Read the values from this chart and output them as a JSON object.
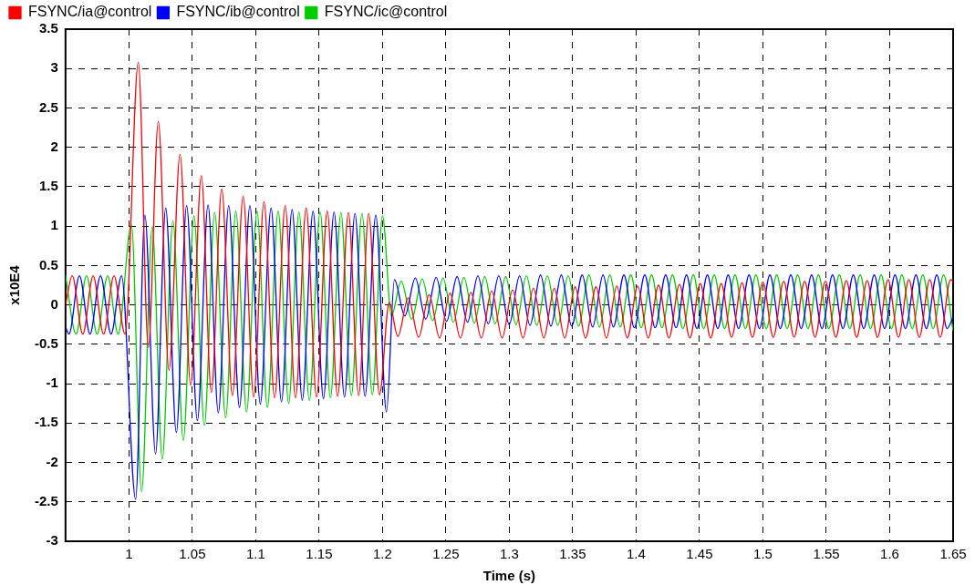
{
  "chart_data": {
    "type": "line",
    "xlabel": "Time (s)",
    "ylabel": "x10E4",
    "xlim": [
      0.95,
      1.65
    ],
    "xticks": [
      1,
      1.05,
      1.1,
      1.15,
      1.2,
      1.25,
      1.3,
      1.35,
      1.4,
      1.45,
      1.5,
      1.55,
      1.6,
      1.65
    ],
    "ylim": [
      -3,
      3.5
    ],
    "yticks": [
      -3,
      -2.5,
      -2,
      -1.5,
      -1,
      -0.5,
      0,
      0.5,
      1,
      1.5,
      2,
      2.5,
      3,
      3.5
    ],
    "grid": true,
    "legend": "top left",
    "marker": "none",
    "series": [
      {
        "name": "FSYNC/ia@control",
        "color": "#ff0000",
        "x": [
          0.95,
          0.9553,
          0.9636,
          0.9718,
          0.98,
          0.9882,
          0.997,
          1.0074,
          1.0153,
          1.0232,
          1.0316,
          1.0403,
          1.0487,
          1.0571,
          1.065,
          1.0732,
          1.0816,
          1.0901,
          1.0984,
          1.1065,
          1.1149,
          1.1232,
          1.1314,
          1.1398,
          1.148,
          1.1564,
          1.1646,
          1.1731,
          1.1812,
          1.1891,
          1.1976,
          1.2053,
          1.2121,
          1.2203,
          1.2285,
          1.2368,
          1.245,
          1.2532,
          1.2614,
          1.2697,
          1.2779,
          1.2861,
          1.2943,
          1.3026,
          1.3108,
          1.319,
          1.3272,
          1.3355,
          1.3437,
          1.3519,
          1.3601,
          1.3684,
          1.3766,
          1.3848,
          1.393,
          1.4013,
          1.4095,
          1.4177,
          1.4259,
          1.4342,
          1.4424,
          1.4506,
          1.4588,
          1.4671,
          1.4753,
          1.4835,
          1.4917,
          1.5,
          1.5082,
          1.5164,
          1.5246,
          1.5329,
          1.5411,
          1.5493,
          1.5575,
          1.5658,
          1.574,
          1.5822,
          1.5904,
          1.5987,
          1.6069,
          1.6151,
          1.6233,
          1.6316,
          1.6398,
          1.648,
          1.65
        ],
        "values": [
          0,
          0.37,
          -0.37,
          0.37,
          -0.37,
          0.37,
          -0.37,
          3.08,
          -0.54,
          2.33,
          -0.83,
          1.91,
          -1.02,
          1.64,
          -1.11,
          1.47,
          -1.15,
          1.38,
          -1.17,
          1.31,
          -1.18,
          1.26,
          -1.18,
          1.23,
          -1.17,
          1.19,
          -1.16,
          1.17,
          -1.15,
          1.16,
          -1.14,
          0.03,
          -0.4,
          0.09,
          -0.41,
          0.13,
          -0.42,
          0.15,
          -0.42,
          0.16,
          -0.42,
          0.18,
          -0.42,
          0.19,
          -0.42,
          0.21,
          -0.42,
          0.21,
          -0.42,
          0.23,
          -0.42,
          0.23,
          -0.42,
          0.24,
          -0.42,
          0.24,
          -0.42,
          0.25,
          -0.42,
          0.26,
          -0.42,
          0.27,
          -0.42,
          0.27,
          -0.41,
          0.28,
          -0.41,
          0.29,
          -0.41,
          0.3,
          -0.41,
          0.3,
          -0.41,
          0.3,
          -0.41,
          0.31,
          -0.41,
          0.31,
          -0.41,
          0.32,
          -0.41,
          0.32,
          -0.41,
          0.32,
          -0.41,
          0.32,
          0.3
        ]
      },
      {
        "name": "FSYNC/ib@control",
        "color": "#0000ff",
        "x": [
          0.95,
          0.9527,
          0.961,
          0.9693,
          0.9776,
          0.9859,
          0.9942,
          1.0053,
          1.0126,
          1.021,
          1.029,
          1.0374,
          1.0455,
          1.054,
          1.0624,
          1.0705,
          1.0787,
          1.0872,
          1.0954,
          1.1036,
          1.1121,
          1.1203,
          1.1287,
          1.1367,
          1.1452,
          1.1534,
          1.1618,
          1.17,
          1.1783,
          1.1862,
          1.1947,
          1.2031,
          1.2094,
          1.2176,
          1.2259,
          1.2341,
          1.2423,
          1.2505,
          1.2588,
          1.267,
          1.2752,
          1.2834,
          1.2917,
          1.2999,
          1.3081,
          1.3163,
          1.3246,
          1.3328,
          1.341,
          1.3492,
          1.3575,
          1.3657,
          1.3739,
          1.3821,
          1.3904,
          1.3986,
          1.4068,
          1.415,
          1.4233,
          1.4315,
          1.4397,
          1.4479,
          1.4562,
          1.4644,
          1.4726,
          1.4808,
          1.4891,
          1.4973,
          1.5055,
          1.5137,
          1.522,
          1.5302,
          1.5384,
          1.5466,
          1.5549,
          1.5631,
          1.5713,
          1.5795,
          1.5878,
          1.596,
          1.6042,
          1.6124,
          1.6207,
          1.6289,
          1.6371,
          1.6453,
          1.65
        ],
        "values": [
          -0.28,
          -0.37,
          0.37,
          -0.37,
          0.37,
          -0.37,
          0.37,
          -2.47,
          1.14,
          -1.89,
          1.23,
          -1.62,
          1.26,
          -1.47,
          1.27,
          -1.37,
          1.26,
          -1.3,
          1.26,
          -1.26,
          1.23,
          -1.23,
          1.21,
          -1.21,
          1.19,
          -1.19,
          1.18,
          -1.17,
          1.16,
          -1.16,
          1.14,
          -1.36,
          0.32,
          -0.14,
          0.34,
          -0.18,
          0.35,
          -0.21,
          0.36,
          -0.22,
          0.37,
          -0.24,
          0.37,
          -0.25,
          0.37,
          -0.26,
          0.38,
          -0.27,
          0.38,
          -0.27,
          0.38,
          -0.28,
          0.38,
          -0.28,
          0.38,
          -0.29,
          0.38,
          -0.29,
          0.38,
          -0.29,
          0.38,
          -0.3,
          0.38,
          -0.3,
          0.38,
          -0.3,
          0.38,
          -0.3,
          0.38,
          -0.3,
          0.38,
          -0.3,
          0.38,
          -0.3,
          0.38,
          -0.3,
          0.38,
          -0.3,
          0.38,
          -0.3,
          0.38,
          -0.3,
          0.38,
          -0.3,
          0.38,
          -0.3,
          -0.15
        ]
      },
      {
        "name": "FSYNC/ic@control",
        "color": "#00cc00",
        "x": [
          0.95,
          0.9583,
          0.9666,
          0.9749,
          0.9832,
          0.9915,
          1.002,
          1.01,
          1.0184,
          1.0263,
          1.0347,
          1.0429,
          1.0513,
          1.0595,
          1.0676,
          1.0763,
          1.0843,
          1.0928,
          1.101,
          1.1092,
          1.1177,
          1.126,
          1.1341,
          1.1423,
          1.1508,
          1.1589,
          1.1672,
          1.1754,
          1.1838,
          1.192,
          1.2,
          1.207,
          1.2148,
          1.223,
          1.2313,
          1.2395,
          1.2477,
          1.2559,
          1.2642,
          1.2724,
          1.2806,
          1.2888,
          1.2971,
          1.3053,
          1.3135,
          1.3217,
          1.33,
          1.3382,
          1.3464,
          1.3546,
          1.3629,
          1.3711,
          1.3793,
          1.3875,
          1.3958,
          1.404,
          1.4122,
          1.4204,
          1.4287,
          1.4369,
          1.4451,
          1.4533,
          1.4616,
          1.4698,
          1.478,
          1.4862,
          1.4945,
          1.5027,
          1.5109,
          1.5191,
          1.5274,
          1.5356,
          1.5438,
          1.552,
          1.5603,
          1.5685,
          1.5767,
          1.5849,
          1.5932,
          1.6014,
          1.6096,
          1.6178,
          1.6261,
          1.6343,
          1.6425,
          1.65
        ],
        "values": [
          0.37,
          -0.37,
          0.37,
          -0.37,
          0.37,
          -0.37,
          1.02,
          -2.37,
          0.99,
          -1.96,
          1.07,
          -1.72,
          1.13,
          -1.53,
          1.17,
          -1.43,
          1.19,
          -1.36,
          1.19,
          -1.3,
          1.19,
          -1.25,
          1.18,
          -1.21,
          1.18,
          -1.18,
          1.17,
          -1.15,
          1.16,
          -1.14,
          1.13,
          -0.14,
          0.3,
          -0.18,
          0.33,
          -0.2,
          0.34,
          -0.22,
          0.35,
          -0.23,
          0.36,
          -0.24,
          0.36,
          -0.25,
          0.37,
          -0.26,
          0.37,
          -0.26,
          0.37,
          -0.27,
          0.38,
          -0.28,
          0.38,
          -0.28,
          0.38,
          -0.29,
          0.38,
          -0.29,
          0.38,
          -0.3,
          0.38,
          -0.3,
          0.38,
          -0.3,
          0.38,
          -0.3,
          0.38,
          -0.3,
          0.38,
          -0.3,
          0.38,
          -0.3,
          0.38,
          -0.3,
          0.38,
          -0.3,
          0.38,
          -0.3,
          0.38,
          -0.3,
          0.38,
          -0.3,
          0.38,
          -0.3,
          0.38,
          -0.33
        ]
      }
    ]
  }
}
